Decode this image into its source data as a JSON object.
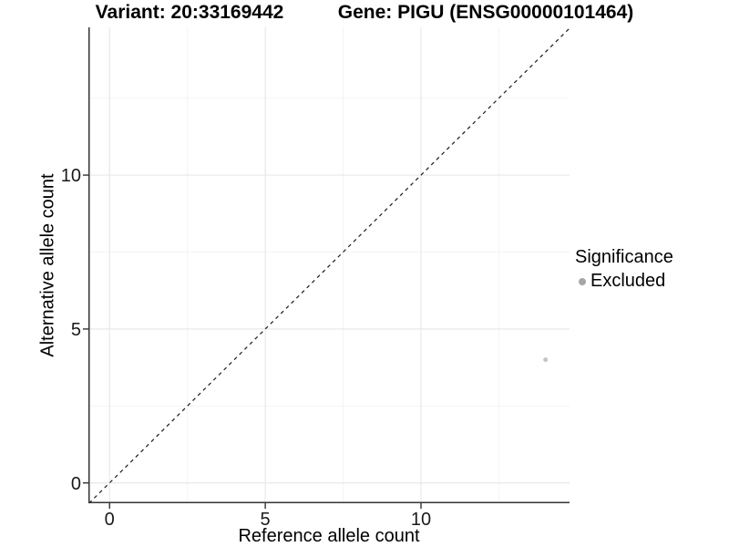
{
  "legend": {
    "title": "Significance",
    "items": [
      {
        "label": "Excluded",
        "color": "#a6a6a6"
      }
    ]
  },
  "chart_data": {
    "type": "scatter",
    "titles": [
      "Variant: 20:33169442",
      "Gene: PIGU (ENSG00000101464)"
    ],
    "xlabel": "Reference allele count",
    "ylabel": "Alternative allele count",
    "xlim": [
      -0.68,
      14.77
    ],
    "ylim": [
      -0.66,
      14.8
    ],
    "x_ticks": [
      0,
      5,
      10
    ],
    "y_ticks": [
      0,
      5,
      10
    ],
    "x_minor": [
      2.5,
      7.5,
      12.5
    ],
    "y_minor": [
      2.5,
      7.5,
      12.5
    ],
    "grid": true,
    "legend_position": "right",
    "series": [
      {
        "name": "Excluded",
        "color": "#c4c4c4",
        "point_radius": 2.5,
        "points": [
          {
            "x": 14,
            "y": 4
          }
        ]
      }
    ],
    "reference_line": {
      "type": "identity",
      "style": "dashed",
      "color": "#1a1a1a"
    },
    "style": {
      "grid_major": "#e8e8e8",
      "grid_minor": "#f4f4f4",
      "axis": "#333333",
      "tick": "#333333"
    }
  }
}
